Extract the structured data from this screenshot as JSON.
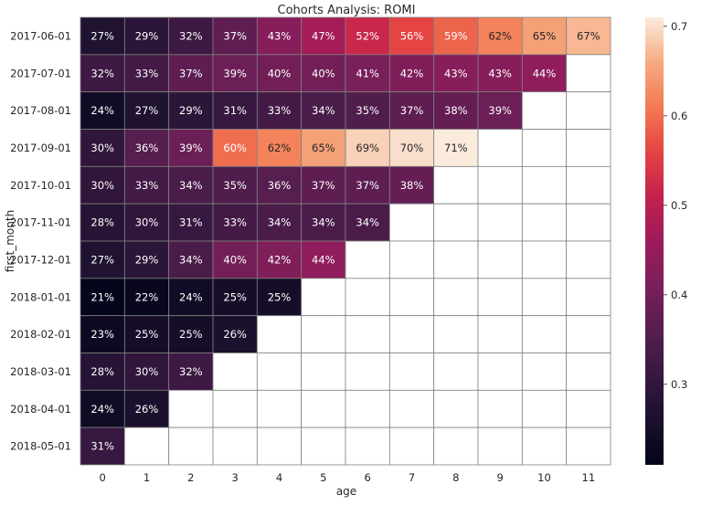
{
  "chart_data": {
    "type": "heatmap",
    "title": "Cohorts Analysis: ROMI",
    "xlabel": "age",
    "ylabel": "first_month",
    "x_categories": [
      "0",
      "1",
      "2",
      "3",
      "4",
      "5",
      "6",
      "7",
      "8",
      "9",
      "10",
      "11"
    ],
    "y_categories": [
      "2017-06-01",
      "2017-07-01",
      "2017-08-01",
      "2017-09-01",
      "2017-10-01",
      "2017-11-01",
      "2017-12-01",
      "2018-01-01",
      "2018-02-01",
      "2018-03-01",
      "2018-04-01",
      "2018-05-01"
    ],
    "values": [
      [
        0.27,
        0.29,
        0.32,
        0.37,
        0.43,
        0.47,
        0.52,
        0.56,
        0.59,
        0.62,
        0.65,
        0.67
      ],
      [
        0.32,
        0.33,
        0.37,
        0.39,
        0.4,
        0.4,
        0.41,
        0.42,
        0.43,
        0.43,
        0.44,
        null
      ],
      [
        0.24,
        0.27,
        0.29,
        0.31,
        0.33,
        0.34,
        0.35,
        0.37,
        0.38,
        0.39,
        null,
        null
      ],
      [
        0.3,
        0.36,
        0.39,
        0.6,
        0.62,
        0.65,
        0.69,
        0.7,
        0.71,
        null,
        null,
        null
      ],
      [
        0.3,
        0.33,
        0.34,
        0.35,
        0.36,
        0.37,
        0.37,
        0.38,
        null,
        null,
        null,
        null
      ],
      [
        0.28,
        0.3,
        0.31,
        0.33,
        0.34,
        0.34,
        0.34,
        null,
        null,
        null,
        null,
        null
      ],
      [
        0.27,
        0.29,
        0.34,
        0.4,
        0.42,
        0.44,
        null,
        null,
        null,
        null,
        null,
        null
      ],
      [
        0.21,
        0.22,
        0.24,
        0.25,
        0.25,
        null,
        null,
        null,
        null,
        null,
        null,
        null
      ],
      [
        0.23,
        0.25,
        0.25,
        0.26,
        null,
        null,
        null,
        null,
        null,
        null,
        null,
        null
      ],
      [
        0.28,
        0.3,
        0.32,
        null,
        null,
        null,
        null,
        null,
        null,
        null,
        null,
        null
      ],
      [
        0.24,
        0.26,
        null,
        null,
        null,
        null,
        null,
        null,
        null,
        null,
        null,
        null
      ],
      [
        0.31,
        null,
        null,
        null,
        null,
        null,
        null,
        null,
        null,
        null,
        null,
        null
      ]
    ],
    "cell_labels": [
      [
        "27%",
        "29%",
        "32%",
        "37%",
        "43%",
        "47%",
        "52%",
        "56%",
        "59%",
        "62%",
        "65%",
        "67%"
      ],
      [
        "32%",
        "33%",
        "37%",
        "39%",
        "40%",
        "40%",
        "41%",
        "42%",
        "43%",
        "43%",
        "44%",
        ""
      ],
      [
        "24%",
        "27%",
        "29%",
        "31%",
        "33%",
        "34%",
        "35%",
        "37%",
        "38%",
        "39%",
        "",
        ""
      ],
      [
        "30%",
        "36%",
        "39%",
        "60%",
        "62%",
        "65%",
        "69%",
        "70%",
        "71%",
        "",
        "",
        ""
      ],
      [
        "30%",
        "33%",
        "34%",
        "35%",
        "36%",
        "37%",
        "37%",
        "38%",
        "",
        "",
        "",
        ""
      ],
      [
        "28%",
        "30%",
        "31%",
        "33%",
        "34%",
        "34%",
        "34%",
        "",
        "",
        "",
        "",
        ""
      ],
      [
        "27%",
        "29%",
        "34%",
        "40%",
        "42%",
        "44%",
        "",
        "",
        "",
        "",
        "",
        ""
      ],
      [
        "21%",
        "22%",
        "24%",
        "25%",
        "25%",
        "",
        "",
        "",
        "",
        "",
        "",
        ""
      ],
      [
        "23%",
        "25%",
        "25%",
        "26%",
        "",
        "",
        "",
        "",
        "",
        "",
        "",
        ""
      ],
      [
        "28%",
        "30%",
        "32%",
        "",
        "",
        "",
        "",
        "",
        "",
        "",
        "",
        ""
      ],
      [
        "24%",
        "26%",
        "",
        "",
        "",
        "",
        "",
        "",
        "",
        "",
        "",
        ""
      ],
      [
        "31%",
        "",
        "",
        "",
        "",
        "",
        "",
        "",
        "",
        "",
        "",
        ""
      ]
    ],
    "colorbar": {
      "vmin": 0.21,
      "vmax": 0.71,
      "ticks": [
        0.3,
        0.4,
        0.5,
        0.6,
        0.7
      ],
      "tick_labels": [
        "0.3",
        "0.4",
        "0.5",
        "0.6",
        "0.7"
      ],
      "colormap": "rocket"
    },
    "grid": true,
    "cell_border_color": "#808080"
  }
}
